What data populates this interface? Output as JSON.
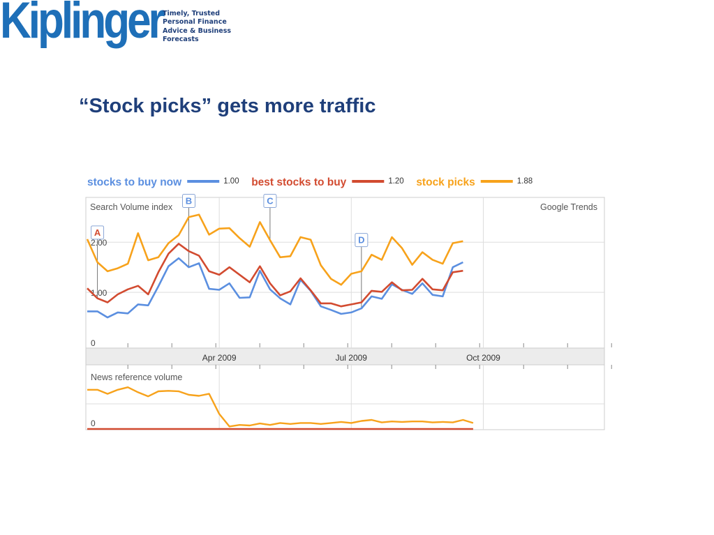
{
  "header": {
    "logo_text": "Kiplinger",
    "tagline": [
      "Timely, Trusted",
      "Personal Finance",
      "Advice & Business",
      "Forecasts"
    ]
  },
  "slide": {
    "title": "“Stock picks” gets more traffic"
  },
  "chart_data": {
    "type": "line",
    "source": "Google Trends",
    "main_panel_label": "Search Volume index",
    "news_panel_label": "News reference volume",
    "ylim": [
      0,
      300
    ],
    "yticks": [
      {
        "value": 0,
        "label": "0"
      },
      {
        "value": 100,
        "label": "1.00"
      },
      {
        "value": 200,
        "label": "2.00"
      }
    ],
    "x_labels": [
      {
        "week": 13,
        "label": "Apr 2009"
      },
      {
        "week": 26,
        "label": "Jul 2009"
      },
      {
        "week": 39,
        "label": "Oct 2009"
      }
    ],
    "total_weeks": 51,
    "colors": {
      "blue": "#5b8fe0",
      "red": "#d24b30",
      "orange": "#f7a21b"
    },
    "series": [
      {
        "name": "stocks to buy now",
        "color": "#5b8fe0",
        "avg_label": "1.00",
        "values": [
          62,
          62,
          50,
          60,
          58,
          76,
          74,
          112,
          152,
          168,
          150,
          158,
          107,
          105,
          118,
          89,
          90,
          143,
          106,
          88,
          76,
          125,
          103,
          72,
          65,
          57,
          60,
          68,
          92,
          87,
          116,
          105,
          97,
          118,
          95,
          92,
          150,
          160
        ]
      },
      {
        "name": "best stocks to buy",
        "color": "#d24b30",
        "avg_label": "1.20",
        "values": [
          108,
          88,
          80,
          96,
          106,
          113,
          96,
          140,
          177,
          197,
          182,
          173,
          142,
          135,
          150,
          135,
          120,
          152,
          118,
          94,
          102,
          128,
          104,
          78,
          78,
          72,
          76,
          80,
          103,
          101,
          120,
          104,
          105,
          127,
          106,
          104,
          140,
          143
        ]
      },
      {
        "name": "stock picks",
        "color": "#f7a21b",
        "avg_label": "1.88",
        "values": [
          206,
          160,
          142,
          148,
          157,
          218,
          164,
          170,
          198,
          214,
          250,
          255,
          215,
          227,
          228,
          208,
          191,
          240,
          204,
          170,
          172,
          210,
          205,
          154,
          127,
          115,
          137,
          142,
          175,
          165,
          210,
          188,
          155,
          180,
          165,
          157,
          198,
          202
        ]
      }
    ],
    "news_series": [
      {
        "name": "stock picks",
        "color": "#f7a21b",
        "values": [
          78,
          78,
          70,
          78,
          83,
          73,
          65,
          75,
          76,
          75,
          68,
          66,
          70,
          30,
          5,
          8,
          7,
          11,
          8,
          12,
          10,
          12,
          12,
          10,
          12,
          14,
          12,
          16,
          18,
          13,
          15,
          14,
          15,
          15,
          13,
          14,
          13,
          18,
          12
        ]
      },
      {
        "name": "best stocks to buy",
        "color": "#d24b30",
        "values": [
          0,
          0,
          0,
          0,
          0,
          0,
          0,
          0,
          0,
          0,
          0,
          0,
          0,
          0,
          0,
          0,
          0,
          0,
          0,
          0,
          0,
          0,
          0,
          0,
          0,
          0,
          0,
          0,
          0,
          0,
          0,
          0,
          0,
          0,
          0,
          0,
          0,
          0,
          0
        ]
      }
    ],
    "annotations": [
      {
        "letter": "A",
        "week": 1,
        "series": "best stocks to buy",
        "color": "#d24b30",
        "box_value": 220
      },
      {
        "letter": "B",
        "week": 10,
        "series": "stocks to buy now",
        "color": "#5b8fe0",
        "box_value": 283
      },
      {
        "letter": "C",
        "week": 18,
        "series": "stock picks",
        "color": "#5b8fe0",
        "box_value": 283
      },
      {
        "letter": "D",
        "week": 27,
        "series": "stocks to buy now",
        "color": "#5b8fe0",
        "box_value": 205
      }
    ]
  }
}
